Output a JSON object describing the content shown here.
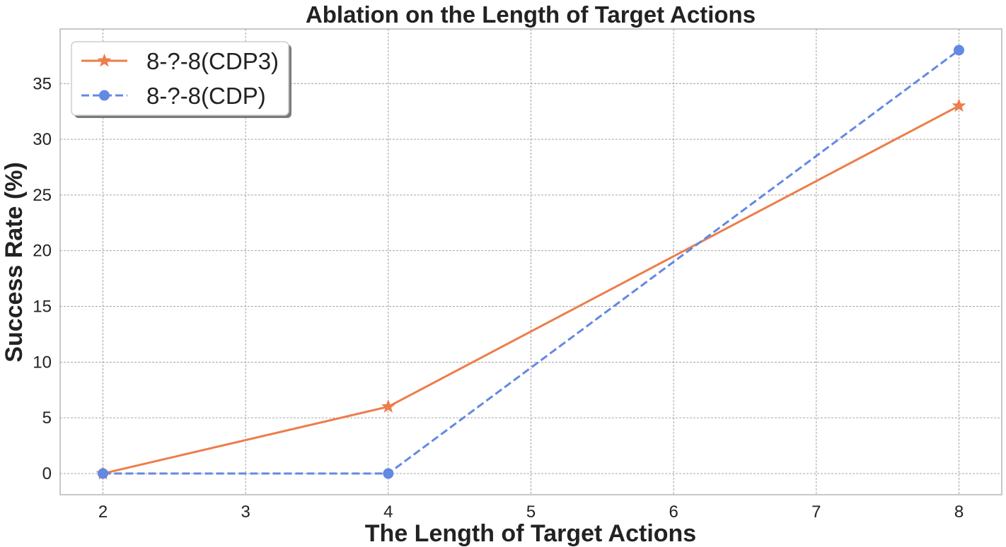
{
  "chart_data": {
    "type": "line",
    "title": "Ablation on the Length of Target Actions",
    "xlabel": "The Length of Target Actions",
    "ylabel": "Success Rate (%)",
    "xlim": [
      1.7,
      8.3
    ],
    "ylim": [
      -1.9,
      39.9
    ],
    "xticks": [
      2,
      3,
      4,
      5,
      6,
      7,
      8
    ],
    "yticks": [
      0,
      5,
      10,
      15,
      20,
      25,
      30,
      35
    ],
    "grid": true,
    "legend_position": "top-left",
    "series": [
      {
        "name": "8-?-8(CDP3)",
        "x": [
          2,
          4,
          8
        ],
        "y": [
          0,
          6,
          33
        ],
        "color": "#ED7D4A",
        "line_style": "solid",
        "marker": "star"
      },
      {
        "name": "8-?-8(CDP)",
        "x": [
          2,
          4,
          8
        ],
        "y": [
          0,
          0,
          38
        ],
        "color": "#6389E3",
        "line_style": "dashed",
        "marker": "circle"
      }
    ]
  }
}
